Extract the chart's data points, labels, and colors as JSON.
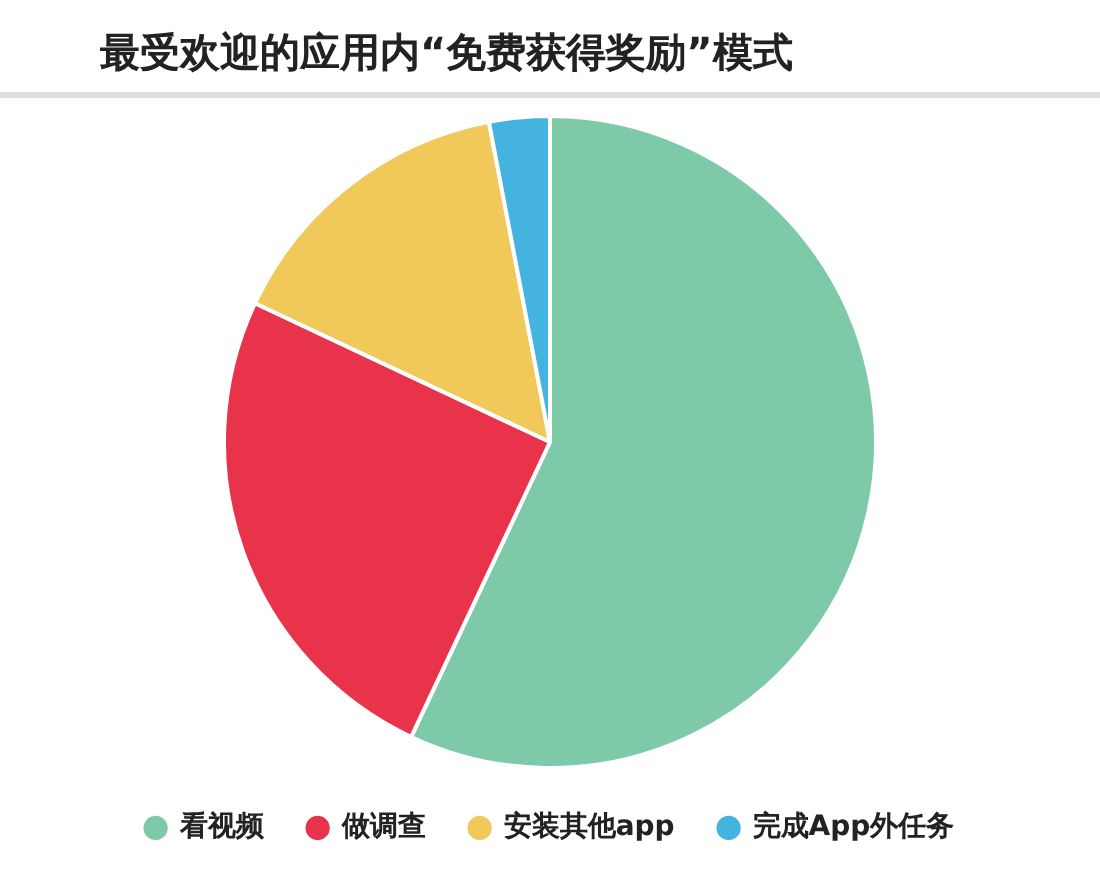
{
  "chart_data": {
    "type": "pie",
    "title": "最受欢迎的应用内“免费获得奖励”模式",
    "categories": [
      "看视频",
      "做调查",
      "安装其他app",
      "完成App外任务"
    ],
    "values": [
      57,
      25,
      15,
      3
    ],
    "colors": [
      "#7ec9a7",
      "#e8334a",
      "#f0c95a",
      "#45b3e0"
    ],
    "legend": "bottom"
  }
}
